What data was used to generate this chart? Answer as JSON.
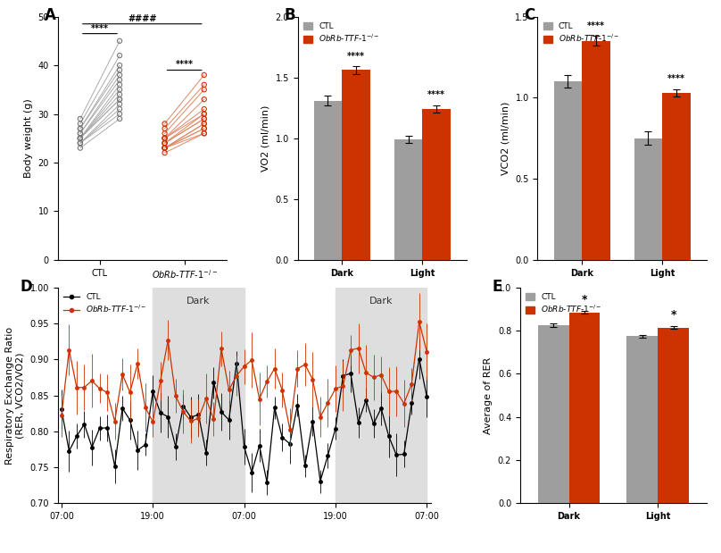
{
  "colors": {
    "ctl_gray": "#9E9E9E",
    "ko_red": "#CC3300"
  },
  "panelA": {
    "ylabel": "Body weight (g)",
    "ylim": [
      0,
      50
    ],
    "yticks": [
      0,
      10,
      20,
      30,
      40,
      50
    ],
    "ctl_pre": [
      23,
      24,
      24,
      24,
      25,
      25,
      25,
      25,
      25,
      26,
      26,
      27,
      27,
      28,
      29
    ],
    "ctl_post": [
      29,
      30,
      31,
      32,
      33,
      33,
      34,
      35,
      36,
      37,
      38,
      39,
      40,
      42,
      45
    ],
    "ko_pre": [
      22,
      23,
      23,
      23,
      23,
      23,
      24,
      24,
      24,
      25,
      25,
      25,
      26,
      27,
      28
    ],
    "ko_post": [
      26,
      26,
      27,
      27,
      28,
      28,
      29,
      29,
      30,
      30,
      31,
      33,
      35,
      36,
      38
    ],
    "sig_within_ctl": "****",
    "sig_within_ko": "****",
    "sig_between": "####"
  },
  "panelB": {
    "ylabel": "VO2 (ml/min)",
    "ylim": [
      0.0,
      2.0
    ],
    "yticks": [
      0.0,
      0.5,
      1.0,
      1.5,
      2.0
    ],
    "dark_ctl": 1.31,
    "dark_ko": 1.56,
    "light_ctl": 0.99,
    "light_ko": 1.24,
    "dark_ctl_err": 0.04,
    "dark_ko_err": 0.03,
    "light_ctl_err": 0.03,
    "light_ko_err": 0.03,
    "sig_dark": "****",
    "sig_light": "****"
  },
  "panelC": {
    "ylabel": "VCO2 (ml/min)",
    "ylim": [
      0.0,
      1.5
    ],
    "yticks": [
      0.0,
      0.5,
      1.0,
      1.5
    ],
    "dark_ctl": 1.1,
    "dark_ko": 1.35,
    "light_ctl": 0.75,
    "light_ko": 1.03,
    "dark_ctl_err": 0.04,
    "dark_ko_err": 0.03,
    "light_ctl_err": 0.04,
    "light_ko_err": 0.02,
    "sig_dark": "****",
    "sig_light": "****"
  },
  "panelD": {
    "ylabel": "Respiratory Exchange Ratio\n(RER, VCO2/VO2)",
    "xlabel_ticks": [
      "07:00",
      "19:00",
      "07:00",
      "19:00",
      "07:00"
    ],
    "ylim": [
      0.7,
      1.0
    ],
    "yticks": [
      0.7,
      0.75,
      0.8,
      0.85,
      0.9,
      0.95,
      1.0
    ],
    "n_points": 49
  },
  "panelE": {
    "ylabel": "Average of RER",
    "ylim": [
      0.0,
      1.0
    ],
    "yticks": [
      0.0,
      0.2,
      0.4,
      0.6,
      0.8,
      1.0
    ],
    "dark_ctl": 0.825,
    "dark_ko": 0.885,
    "light_ctl": 0.775,
    "light_ko": 0.815,
    "dark_ctl_err": 0.008,
    "dark_ko_err": 0.007,
    "light_ctl_err": 0.007,
    "light_ko_err": 0.007,
    "sig_dark": "*",
    "sig_light": "*"
  }
}
